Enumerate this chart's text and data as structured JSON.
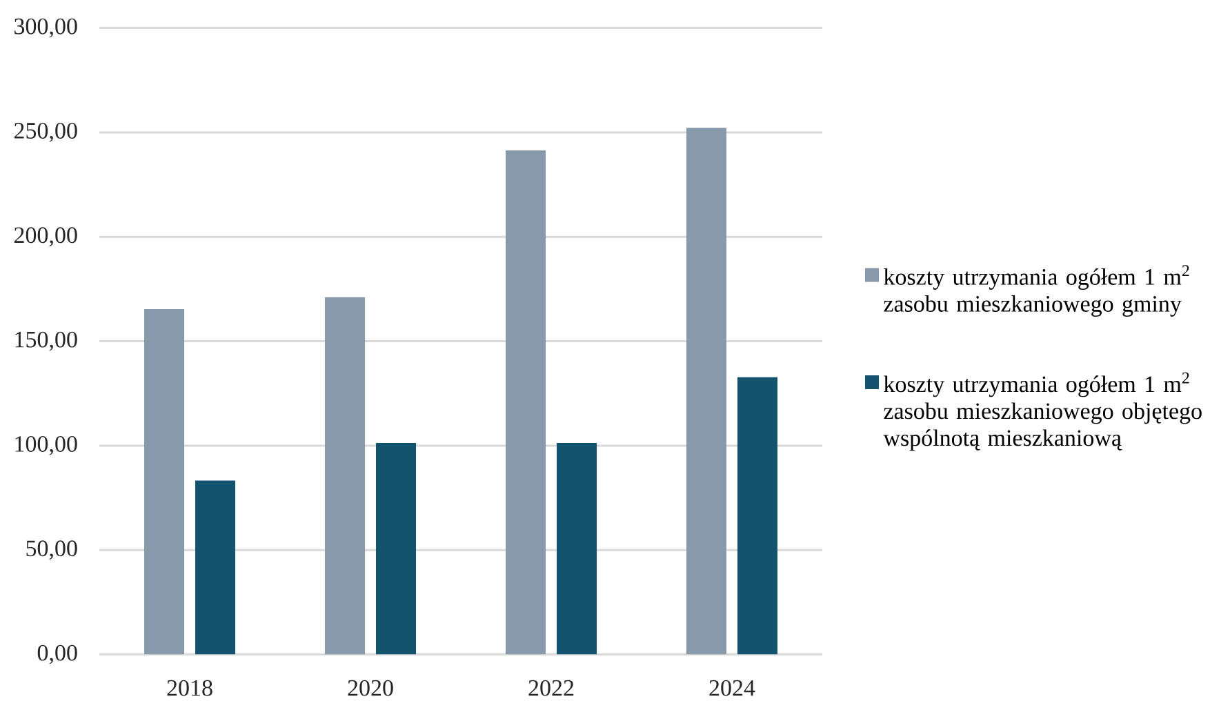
{
  "chart_data": {
    "type": "bar",
    "categories": [
      "2018",
      "2020",
      "2022",
      "2024"
    ],
    "series": [
      {
        "name": "koszty utrzymania ogółem 1 m$^{2}$ zasobu mieszkaniowego gminy",
        "color": "#8799aa",
        "values": [
          165.4,
          171.1,
          241.4,
          252.2
        ]
      },
      {
        "name": "koszty utrzymania ogółem 1 m$^{2}$ zasobu mieszkaniowego objętego wspólnotą mieszkaniową",
        "color": "#14536e",
        "values": [
          83.3,
          101.3,
          101.3,
          132.8
        ]
      }
    ],
    "ylim": [
      0,
      300
    ],
    "yticks": [
      {
        "value": 0,
        "label": "0,00"
      },
      {
        "value": 50,
        "label": "50,00"
      },
      {
        "value": 100,
        "label": "100,00"
      },
      {
        "value": 150,
        "label": "150,00"
      },
      {
        "value": 200,
        "label": "200,00"
      },
      {
        "value": 250,
        "label": "250,00"
      },
      {
        "value": 300,
        "label": "300,00"
      }
    ],
    "grid": "y",
    "legend": "right"
  }
}
